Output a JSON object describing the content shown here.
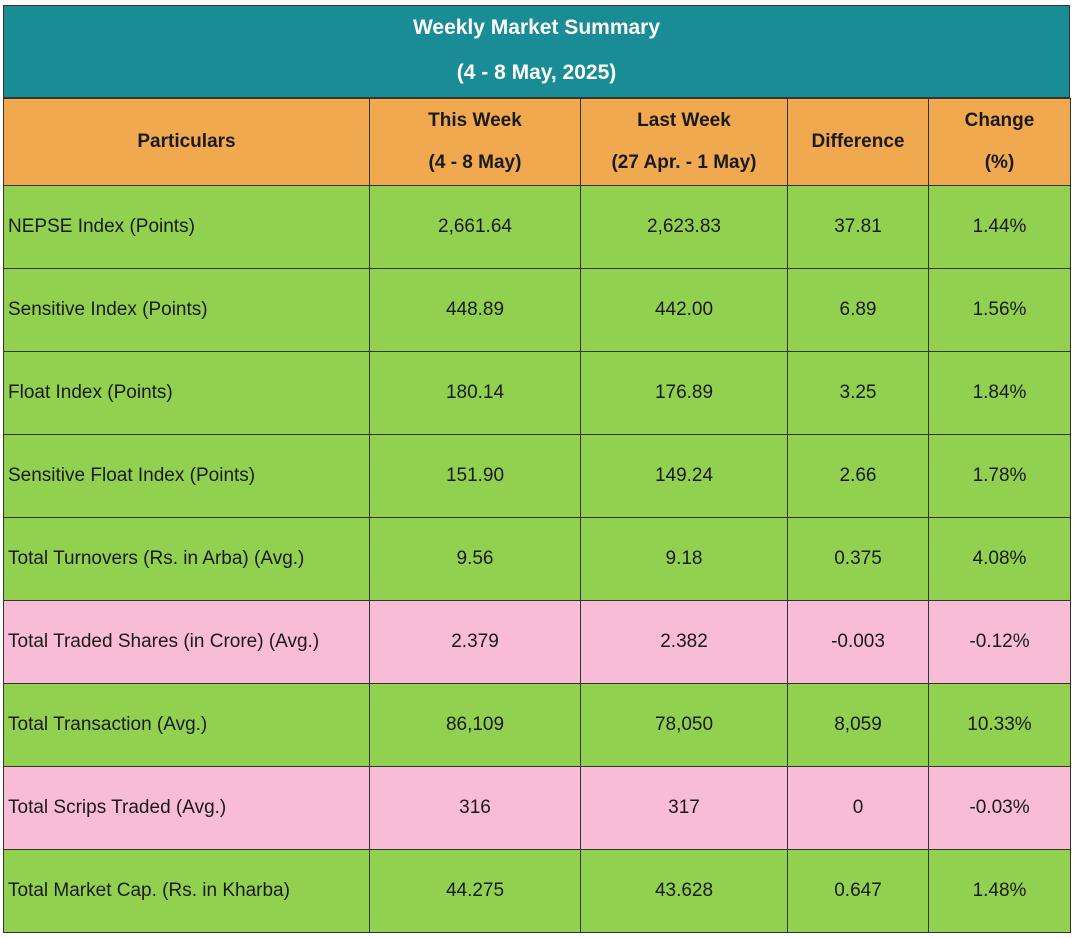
{
  "title": {
    "line1": "Weekly Market Summary",
    "line2": "(4 - 8 May, 2025)"
  },
  "columns": {
    "particulars": "Particulars",
    "this_week": [
      "This Week",
      "(4 - 8 May)"
    ],
    "last_week": [
      "Last Week",
      "(27 Apr. - 1 May)"
    ],
    "difference": "Difference",
    "change": [
      "Change",
      "(%)"
    ]
  },
  "rows": [
    {
      "label": "NEPSE Index (Points)",
      "this_week": "2,661.64",
      "last_week": "2,623.83",
      "difference": "37.81",
      "change": "1.44%",
      "color": "green"
    },
    {
      "label": "Sensitive Index (Points)",
      "this_week": "448.89",
      "last_week": "442.00",
      "difference": "6.89",
      "change": "1.56%",
      "color": "green"
    },
    {
      "label": "Float Index (Points)",
      "this_week": "180.14",
      "last_week": "176.89",
      "difference": "3.25",
      "change": "1.84%",
      "color": "green"
    },
    {
      "label": "Sensitive Float Index (Points)",
      "this_week": "151.90",
      "last_week": "149.24",
      "difference": "2.66",
      "change": "1.78%",
      "color": "green"
    },
    {
      "label": "Total Turnovers (Rs. in Arba) (Avg.)",
      "this_week": "9.56",
      "last_week": "9.18",
      "difference": "0.375",
      "change": "4.08%",
      "color": "green"
    },
    {
      "label": "Total Traded Shares (in Crore) (Avg.)",
      "this_week": "2.379",
      "last_week": "2.382",
      "difference": "-0.003",
      "change": "-0.12%",
      "color": "pink"
    },
    {
      "label": "Total Transaction (Avg.)",
      "this_week": "86,109",
      "last_week": "78,050",
      "difference": "8,059",
      "change": "10.33%",
      "color": "green"
    },
    {
      "label": "Total Scrips Traded (Avg.)",
      "this_week": "316",
      "last_week": "317",
      "difference": "0",
      "change": "-0.03%",
      "color": "pink"
    },
    {
      "label": "Total Market Cap. (Rs. in Kharba)",
      "this_week": "44.275",
      "last_week": "43.628",
      "difference": "0.647",
      "change": "1.48%",
      "color": "green"
    }
  ],
  "colors": {
    "title_bg": "#1a8c96",
    "header_bg": "#f0a94e",
    "positive_row": "#92d050",
    "negative_row": "#f9bcd6"
  }
}
